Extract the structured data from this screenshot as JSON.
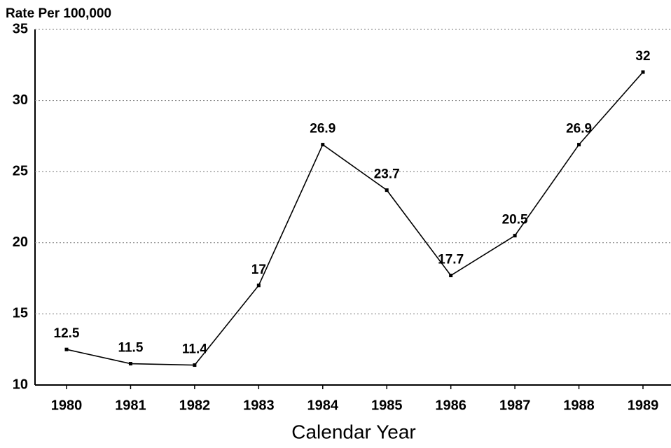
{
  "chart_data": {
    "type": "line",
    "y_axis_label": "Rate Per 100,000",
    "x_axis_label": "Calendar Year",
    "categories": [
      "1980",
      "1981",
      "1982",
      "1983",
      "1984",
      "1985",
      "1986",
      "1987",
      "1988",
      "1989"
    ],
    "values": [
      12.5,
      11.5,
      11.4,
      17,
      26.9,
      23.7,
      17.7,
      20.5,
      26.9,
      32
    ],
    "color": "#000000",
    "ylim": [
      10,
      35
    ],
    "yticks": [
      10,
      15,
      20,
      25,
      30,
      35
    ],
    "grid": true
  }
}
